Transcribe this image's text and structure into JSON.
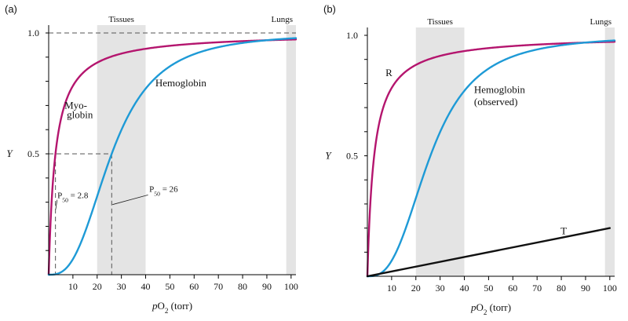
{
  "chart_data": [
    {
      "panel_label": "(a)",
      "type": "line",
      "xlabel": "pO2 (torr)",
      "xlabel_main": "pO",
      "xlabel_sub": "2",
      "xlabel_unit": " (torr)",
      "ylabel": "Y",
      "xlim": [
        0,
        102
      ],
      "ylim": [
        0,
        1.0
      ],
      "xticks": [
        10,
        20,
        30,
        40,
        50,
        60,
        70,
        80,
        90,
        100
      ],
      "yticks": [
        0,
        0.5,
        1.0
      ],
      "ytick_labels": [
        "1.0",
        "0.5"
      ],
      "bands": [
        {
          "label": "Tissues",
          "x0": 20,
          "x1": 40
        },
        {
          "label": "Lungs",
          "x0": 98,
          "x1": 102
        }
      ],
      "series": [
        {
          "name": "Myoglobin",
          "label_line1": "Myo-",
          "label_line2": "globin",
          "color": "#b4156e",
          "p50": 2.8,
          "hill_n": 1.0,
          "x": [
            0,
            1,
            2,
            2.8,
            4,
            6,
            10,
            20,
            30,
            40,
            60,
            80,
            100
          ],
          "y": [
            0,
            0.26,
            0.42,
            0.5,
            0.59,
            0.68,
            0.78,
            0.88,
            0.93,
            0.96,
            0.97,
            0.98,
            0.985
          ]
        },
        {
          "name": "Hemoglobin",
          "color": "#1e9ad6",
          "p50": 26,
          "hill_n": 2.8,
          "x": [
            0,
            10,
            15,
            20,
            26,
            30,
            40,
            50,
            60,
            80,
            100
          ],
          "y": [
            0,
            0.08,
            0.19,
            0.32,
            0.5,
            0.62,
            0.78,
            0.87,
            0.91,
            0.95,
            0.97
          ]
        }
      ],
      "annotations": [
        {
          "text_main": "P",
          "text_sub": "50",
          "text_value": " = 2.8",
          "x": 2.8,
          "y": 0.5
        },
        {
          "text_main": "P",
          "text_sub": "50",
          "text_value": " = 26",
          "x": 26,
          "y": 0.5
        }
      ]
    },
    {
      "panel_label": "(b)",
      "type": "line",
      "xlabel": "pO2 (torr)",
      "xlabel_main": "pO",
      "xlabel_sub": "2",
      "xlabel_unit": " (torr)",
      "ylabel": "Y",
      "xlim": [
        0,
        102
      ],
      "ylim": [
        0,
        1.0
      ],
      "xticks": [
        10,
        20,
        30,
        40,
        50,
        60,
        70,
        80,
        90,
        100
      ],
      "yticks": [
        0,
        0.5,
        1.0
      ],
      "ytick_labels": [
        "1.0",
        "0.5"
      ],
      "bands": [
        {
          "label": "Tissues",
          "x0": 20,
          "x1": 40
        },
        {
          "label": "Lungs",
          "x0": 98,
          "x1": 102
        }
      ],
      "series": [
        {
          "name": "R",
          "color": "#b4156e",
          "p50": 2.8,
          "hill_n": 1.0,
          "x": [
            0,
            1,
            2,
            2.8,
            4,
            6,
            10,
            20,
            30,
            40,
            60,
            80,
            100
          ],
          "y": [
            0,
            0.26,
            0.42,
            0.5,
            0.59,
            0.68,
            0.78,
            0.88,
            0.93,
            0.96,
            0.97,
            0.98,
            0.985
          ]
        },
        {
          "name": "Hemoglobin (observed)",
          "label_line1": "Hemoglobin",
          "label_line2": "(observed)",
          "color": "#1e9ad6",
          "p50": 26,
          "hill_n": 2.8,
          "x": [
            0,
            10,
            15,
            20,
            26,
            30,
            40,
            50,
            60,
            80,
            100
          ],
          "y": [
            0,
            0.08,
            0.19,
            0.32,
            0.5,
            0.62,
            0.78,
            0.87,
            0.91,
            0.95,
            0.97
          ]
        },
        {
          "name": "T",
          "color": "#111111",
          "x": [
            0,
            100
          ],
          "y": [
            0,
            0.2
          ]
        }
      ]
    }
  ]
}
